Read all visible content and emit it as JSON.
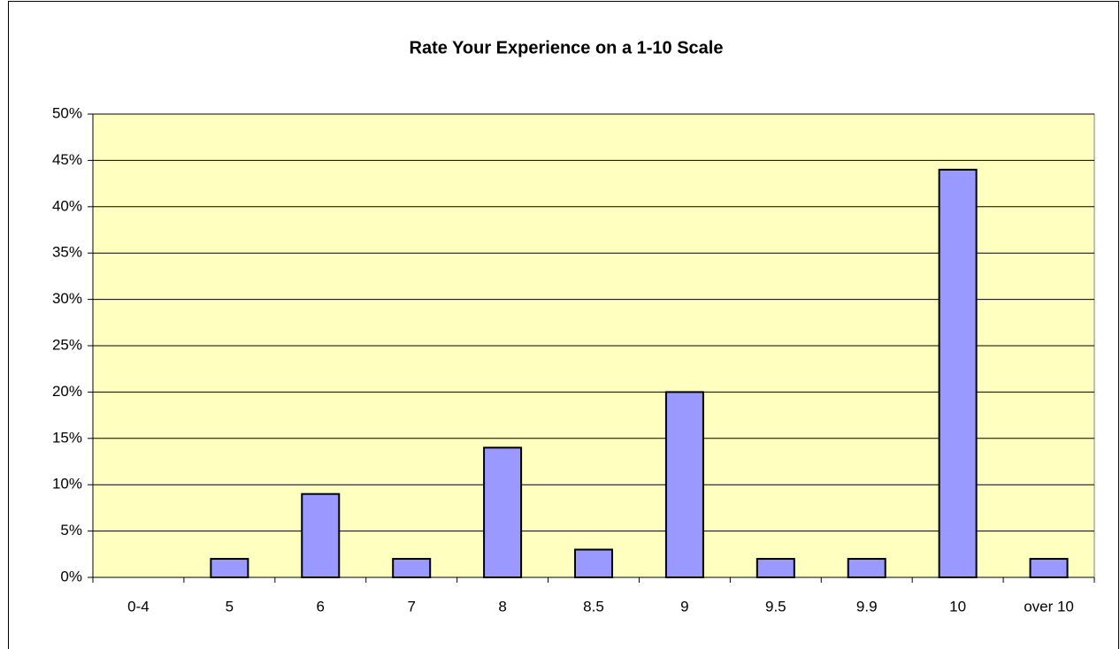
{
  "chart_data": {
    "type": "bar",
    "title": "Rate Your Experience on a 1-10 Scale",
    "categories": [
      "0-4",
      "5",
      "6",
      "7",
      "8",
      "8.5",
      "9",
      "9.5",
      "9.9",
      "10",
      "over 10"
    ],
    "values": [
      0,
      2,
      9,
      2,
      14,
      3,
      20,
      2,
      2,
      44,
      2
    ],
    "color": "#9999ff",
    "ylim": [
      0,
      50
    ],
    "yticks": [
      {
        "value": 0,
        "label": "0%"
      },
      {
        "value": 5,
        "label": "5%"
      },
      {
        "value": 10,
        "label": "10%"
      },
      {
        "value": 15,
        "label": "15%"
      },
      {
        "value": 20,
        "label": "20%"
      },
      {
        "value": 25,
        "label": "25%"
      },
      {
        "value": 30,
        "label": "30%"
      },
      {
        "value": 35,
        "label": "35%"
      },
      {
        "value": 40,
        "label": "40%"
      },
      {
        "value": 45,
        "label": "45%"
      },
      {
        "value": 50,
        "label": "50%"
      }
    ],
    "grid": true
  }
}
